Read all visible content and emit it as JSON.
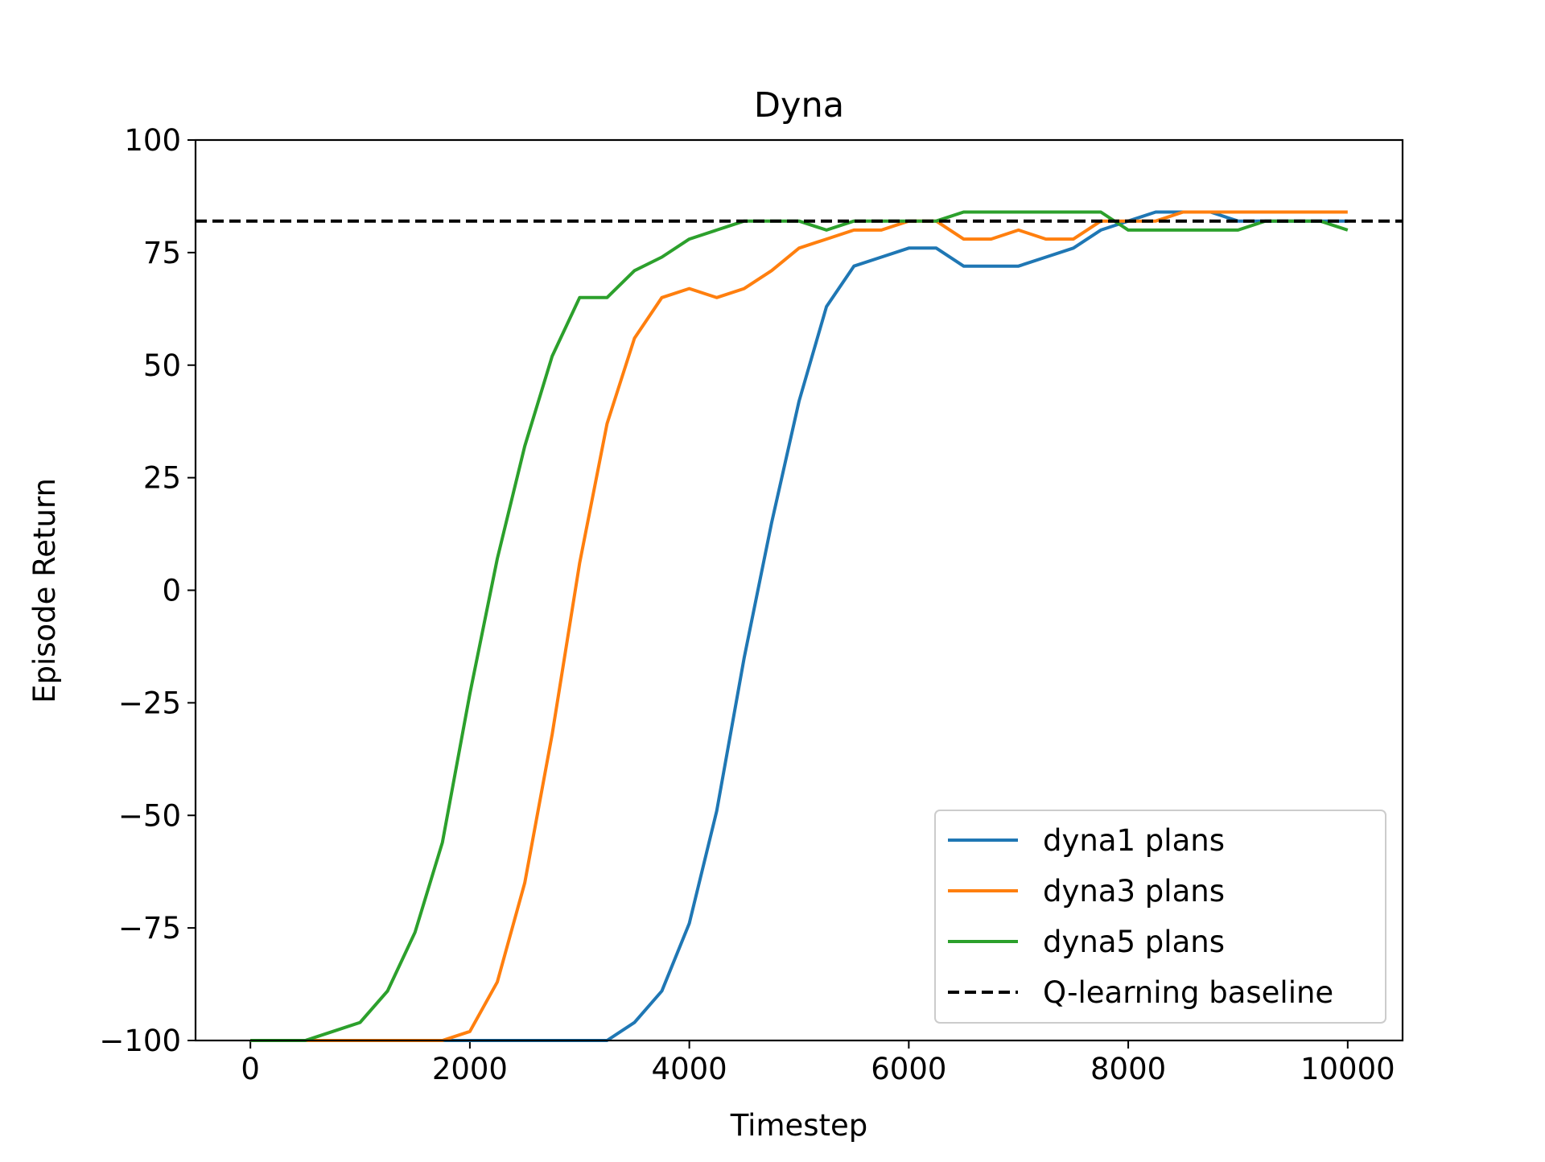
{
  "chart_data": {
    "type": "line",
    "title": "Dyna",
    "xlabel": "Timestep",
    "ylabel": "Episode Return",
    "xlim": [
      -500,
      10500
    ],
    "ylim": [
      -100,
      100
    ],
    "xticks": [
      0,
      2000,
      4000,
      6000,
      8000,
      10000
    ],
    "xtick_labels": [
      "0",
      "2000",
      "4000",
      "6000",
      "8000",
      "10000"
    ],
    "yticks": [
      -100,
      -75,
      -50,
      -25,
      0,
      25,
      50,
      75,
      100
    ],
    "ytick_labels": [
      "−100",
      "−75",
      "−50",
      "−25",
      "0",
      "25",
      "50",
      "75",
      "100"
    ],
    "grid": false,
    "legend_position": "lower-right",
    "x": [
      0,
      250,
      500,
      750,
      1000,
      1250,
      1500,
      1750,
      2000,
      2250,
      2500,
      2750,
      3000,
      3250,
      3500,
      3750,
      4000,
      4250,
      4500,
      4750,
      5000,
      5250,
      5500,
      5750,
      6000,
      6250,
      6500,
      6750,
      7000,
      7250,
      7500,
      7750,
      8000,
      8250,
      8500,
      8750,
      9000,
      9250,
      9500,
      9750,
      10000
    ],
    "series": [
      {
        "name": "dyna1 plans",
        "color": "#1f77b4",
        "values": [
          -100,
          -100,
          -100,
          -100,
          -100,
          -100,
          -100,
          -100,
          -100,
          -100,
          -100,
          -100,
          -100,
          -100,
          -96,
          -89,
          -74,
          -49,
          -15,
          15,
          42,
          63,
          72,
          74,
          76,
          76,
          72,
          72,
          72,
          74,
          76,
          80,
          82,
          84,
          84,
          84,
          82,
          82,
          82,
          82,
          82
        ]
      },
      {
        "name": "dyna3 plans",
        "color": "#ff7f0e",
        "values": [
          -100,
          -100,
          -100,
          -100,
          -100,
          -100,
          -100,
          -100,
          -98,
          -87,
          -65,
          -32,
          6,
          37,
          56,
          65,
          67,
          65,
          67,
          71,
          76,
          78,
          80,
          80,
          82,
          82,
          78,
          78,
          80,
          78,
          78,
          82,
          82,
          82,
          84,
          84,
          84,
          84,
          84,
          84,
          84
        ]
      },
      {
        "name": "dyna5 plans",
        "color": "#2ca02c",
        "values": [
          -100,
          -100,
          -100,
          -98,
          -96,
          -89,
          -76,
          -56,
          -23,
          7,
          32,
          52,
          65,
          65,
          71,
          74,
          78,
          80,
          82,
          82,
          82,
          80,
          82,
          82,
          82,
          82,
          84,
          84,
          84,
          84,
          84,
          84,
          80,
          80,
          80,
          80,
          80,
          82,
          82,
          82,
          80
        ]
      }
    ],
    "baseline": {
      "name": "Q-learning baseline",
      "color": "#000000",
      "value": 82
    }
  }
}
